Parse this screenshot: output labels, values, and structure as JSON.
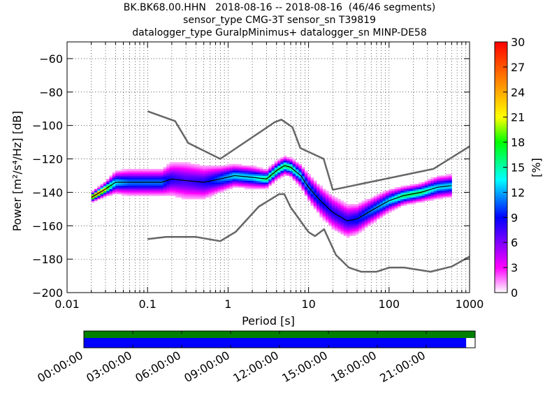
{
  "title_lines": [
    "BK.BK68.00.HHN   2018-08-16 -- 2018-08-16  (46/46 segments)",
    "sensor_type CMG-3T sensor_sn T39819",
    "datalogger_type GuralpMinimus+ datalogger_sn MINP-DE58"
  ],
  "chart_data": {
    "type": "heatmap",
    "xlabel": "Period [s]",
    "ylabel": "Power [m²/s⁴/Hz] [dB]",
    "xscale": "log",
    "xlim": [
      0.01,
      1000
    ],
    "ylim": [
      -200,
      -50
    ],
    "x_ticks": [
      0.01,
      0.1,
      1,
      10,
      100,
      1000
    ],
    "x_tick_labels": [
      "0.01",
      "0.1",
      "1",
      "10",
      "100",
      "1000"
    ],
    "y_ticks": [
      -200,
      -180,
      -160,
      -140,
      -120,
      -100,
      -80,
      -60
    ],
    "y_tick_labels": [
      "−200",
      "−180",
      "−160",
      "−140",
      "−120",
      "−100",
      "−80",
      "−60"
    ],
    "grid": true,
    "colorbar": {
      "label": "[%]",
      "range": [
        0,
        30
      ],
      "ticks": [
        0,
        3,
        6,
        9,
        12,
        15,
        18,
        21,
        24,
        27,
        30
      ],
      "tick_labels": [
        "0",
        "3",
        "6",
        "9",
        "12",
        "15",
        "18",
        "21",
        "24",
        "27",
        "30"
      ]
    },
    "noise_model_high": {
      "period": [
        0.1,
        0.22,
        0.32,
        0.8,
        3.8,
        4.6,
        6.3,
        7.9,
        15.4,
        20,
        354.8,
        1000
      ],
      "power": [
        -91.5,
        -97.4,
        -110.5,
        -120,
        -98,
        -96.5,
        -101,
        -113.5,
        -120,
        -138.5,
        -126,
        -112.5
      ]
    },
    "noise_model_low": {
      "period": [
        0.1,
        0.17,
        0.4,
        0.8,
        1.24,
        2.4,
        4.3,
        5,
        6,
        10,
        12,
        15.6,
        21.9,
        31.6,
        45,
        70,
        101,
        154,
        328,
        600,
        1000
      ],
      "power": [
        -168,
        -166.7,
        -166.7,
        -169.2,
        -163.7,
        -148.6,
        -141.1,
        -141.1,
        -149,
        -163.8,
        -166.2,
        -162.1,
        -177.5,
        -185,
        -187.5,
        -187.5,
        -185,
        -185,
        -187.5,
        -184.4,
        -178.5
      ]
    },
    "mean_psd": {
      "period": [
        0.02,
        0.03,
        0.04,
        0.06,
        0.1,
        0.15,
        0.2,
        0.3,
        0.5,
        0.8,
        1.2,
        2,
        3,
        4,
        5,
        6,
        8,
        10,
        14,
        20,
        30,
        40,
        60,
        100,
        150,
        250,
        400,
        600
      ],
      "power": [
        -143,
        -138,
        -134,
        -134,
        -134,
        -134,
        -132,
        -133,
        -134,
        -132,
        -130,
        -131,
        -132,
        -127,
        -124,
        -125,
        -130,
        -137,
        -145,
        -152,
        -157,
        -156,
        -151,
        -145,
        -142,
        -140,
        -137,
        -136
      ]
    },
    "psd_spread": {
      "period": [
        0.02,
        0.03,
        0.04,
        0.06,
        0.1,
        0.15,
        0.2,
        0.3,
        0.5,
        0.8,
        1.2,
        2,
        3,
        4,
        5,
        6,
        8,
        10,
        14,
        20,
        30,
        40,
        60,
        100,
        150,
        250,
        400,
        600
      ],
      "width_db": [
        2,
        3,
        5,
        6,
        6,
        6,
        8,
        9,
        8,
        6,
        5,
        5,
        4,
        4,
        4,
        4,
        5,
        6,
        7,
        8,
        8,
        7,
        6,
        5,
        4,
        4,
        5,
        5
      ]
    }
  },
  "timeline": {
    "tick_labels": [
      "00:00:00",
      "03:00:00",
      "06:00:00",
      "09:00:00",
      "12:00:00",
      "15:00:00",
      "18:00:00",
      "21:00:00"
    ],
    "data_coverage_fraction": 1.0,
    "psd_coverage_fraction": 0.977,
    "data_color": "#007f00",
    "psd_color": "#0000ff"
  }
}
